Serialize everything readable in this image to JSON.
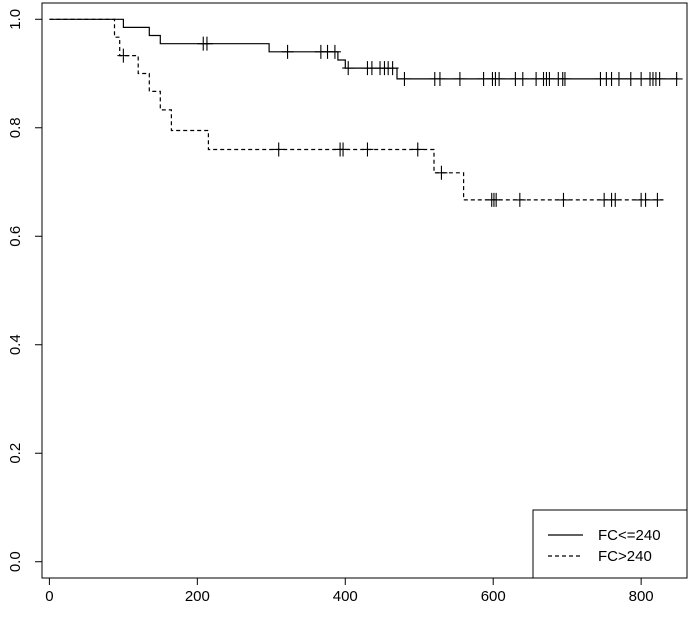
{
  "chart_data": {
    "type": "line",
    "subtype": "step",
    "title": "",
    "xlabel": "",
    "ylabel": "",
    "xlim": [
      -10,
      862
    ],
    "ylim": [
      -0.03,
      1.03
    ],
    "x_ticks": [
      0,
      200,
      400,
      600,
      800
    ],
    "y_ticks": [
      0.0,
      0.2,
      0.4,
      0.6,
      0.8,
      1.0
    ],
    "y_tick_labels": [
      "0.0",
      "0.2",
      "0.4",
      "0.6",
      "0.8",
      "1.0"
    ],
    "grid": false,
    "legend_position": "bottom-right",
    "series": [
      {
        "name": "FC<=240",
        "line_style": "solid",
        "color": "#000000",
        "steps": [
          [
            0,
            1.0
          ],
          [
            100,
            0.985
          ],
          [
            135,
            0.97
          ],
          [
            150,
            0.955
          ],
          [
            297,
            0.94
          ],
          [
            390,
            0.925
          ],
          [
            400,
            0.91
          ],
          [
            470,
            0.89
          ],
          [
            850,
            0.89
          ]
        ],
        "censored": [
          [
            208,
            0.955
          ],
          [
            213,
            0.955
          ],
          [
            322,
            0.94
          ],
          [
            367,
            0.94
          ],
          [
            376,
            0.94
          ],
          [
            386,
            0.94
          ],
          [
            404,
            0.91
          ],
          [
            430,
            0.91
          ],
          [
            436,
            0.91
          ],
          [
            447,
            0.91
          ],
          [
            453,
            0.91
          ],
          [
            458,
            0.91
          ],
          [
            464,
            0.91
          ],
          [
            480,
            0.89
          ],
          [
            521,
            0.89
          ],
          [
            528,
            0.89
          ],
          [
            555,
            0.89
          ],
          [
            587,
            0.89
          ],
          [
            599,
            0.89
          ],
          [
            603,
            0.89
          ],
          [
            608,
            0.89
          ],
          [
            630,
            0.89
          ],
          [
            640,
            0.89
          ],
          [
            658,
            0.89
          ],
          [
            668,
            0.89
          ],
          [
            672,
            0.89
          ],
          [
            676,
            0.89
          ],
          [
            688,
            0.89
          ],
          [
            694,
            0.89
          ],
          [
            697,
            0.89
          ],
          [
            745,
            0.89
          ],
          [
            753,
            0.89
          ],
          [
            760,
            0.89
          ],
          [
            770,
            0.89
          ],
          [
            786,
            0.89
          ],
          [
            800,
            0.89
          ],
          [
            812,
            0.89
          ],
          [
            816,
            0.89
          ],
          [
            820,
            0.89
          ],
          [
            825,
            0.89
          ],
          [
            848,
            0.89
          ]
        ]
      },
      {
        "name": "FC>240",
        "line_style": "dashed",
        "color": "#000000",
        "steps": [
          [
            0,
            1.0
          ],
          [
            88,
            0.967
          ],
          [
            95,
            0.933
          ],
          [
            120,
            0.9
          ],
          [
            135,
            0.867
          ],
          [
            150,
            0.833
          ],
          [
            165,
            0.795
          ],
          [
            215,
            0.76
          ],
          [
            520,
            0.717
          ],
          [
            560,
            0.667
          ],
          [
            830,
            0.667
          ]
        ],
        "censored": [
          [
            100,
            0.933
          ],
          [
            310,
            0.76
          ],
          [
            393,
            0.76
          ],
          [
            397,
            0.76
          ],
          [
            430,
            0.76
          ],
          [
            498,
            0.76
          ],
          [
            530,
            0.717
          ],
          [
            598,
            0.667
          ],
          [
            601,
            0.667
          ],
          [
            604,
            0.667
          ],
          [
            636,
            0.667
          ],
          [
            695,
            0.667
          ],
          [
            750,
            0.667
          ],
          [
            760,
            0.667
          ],
          [
            765,
            0.667
          ],
          [
            800,
            0.667
          ],
          [
            806,
            0.667
          ],
          [
            822,
            0.667
          ]
        ]
      }
    ]
  }
}
